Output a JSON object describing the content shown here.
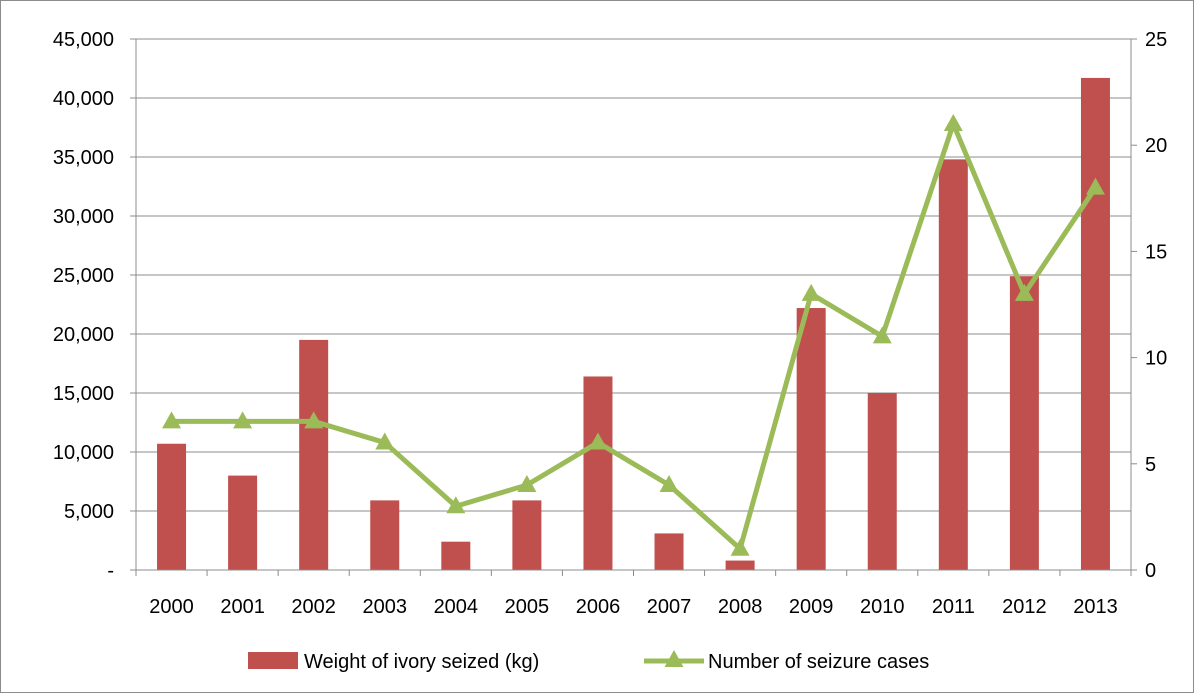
{
  "chart_data": {
    "type": "bar",
    "categories": [
      "2000",
      "2001",
      "2002",
      "2003",
      "2004",
      "2005",
      "2006",
      "2007",
      "2008",
      "2009",
      "2010",
      "2011",
      "2012",
      "2013"
    ],
    "series": [
      {
        "name": "Weight of ivory seized (kg)",
        "type": "bar",
        "axis": "left",
        "color": "#c0504d",
        "values": [
          10700,
          8000,
          19500,
          5900,
          2400,
          5900,
          16400,
          3100,
          800,
          22200,
          15000,
          34800,
          24900,
          41700
        ]
      },
      {
        "name": "Number of seizure cases",
        "type": "line",
        "axis": "right",
        "color": "#9bbb59",
        "marker": "triangle",
        "values": [
          7,
          7,
          7,
          6,
          3,
          4,
          6,
          4,
          1,
          13,
          11,
          21,
          13,
          18
        ]
      }
    ],
    "y_left": {
      "ylim": [
        0,
        45000
      ],
      "ticks": [
        0,
        5000,
        10000,
        15000,
        20000,
        25000,
        30000,
        35000,
        40000,
        45000
      ],
      "tick_labels": [
        "-",
        "5,000",
        "10,000",
        "15,000",
        "20,000",
        "25,000",
        "30,000",
        "35,000",
        "40,000",
        "45,000"
      ]
    },
    "y_right": {
      "ylim": [
        0,
        25
      ],
      "ticks": [
        0,
        5,
        10,
        15,
        20,
        25
      ],
      "tick_labels": [
        "0",
        "5",
        "10",
        "15",
        "20",
        "25"
      ]
    },
    "grid": true,
    "legend_position": "bottom",
    "title": "",
    "xlabel": "",
    "ylabel": ""
  }
}
